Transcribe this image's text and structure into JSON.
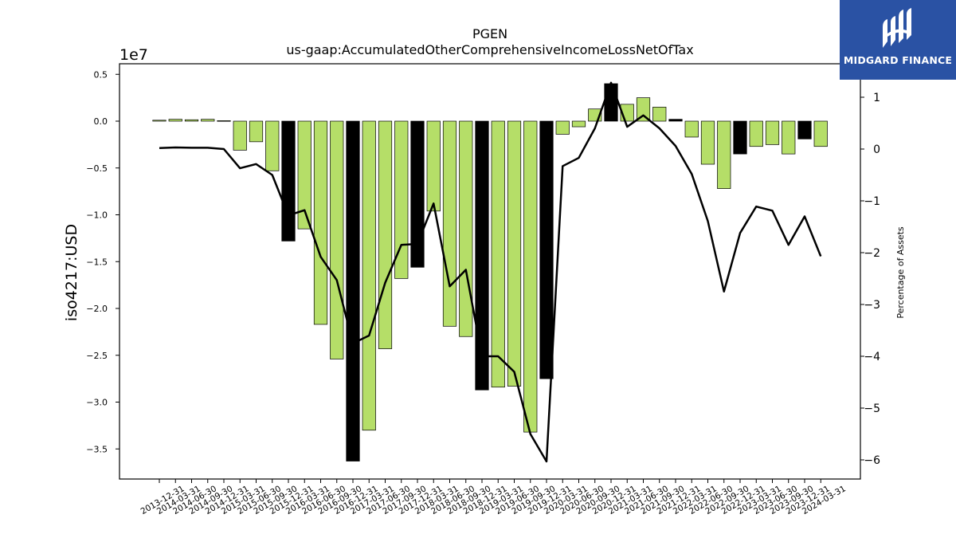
{
  "branding": {
    "logo_text": "MIDGARD FINANCE",
    "logo_bg": "#2a52a4"
  },
  "chart_data": {
    "type": "bar",
    "title": "PGEN",
    "subtitle": "us-gaap:AccumulatedOtherComprehensiveIncomeLossNetOfTax",
    "ylabel": "iso4217:USD",
    "y2label": "Percentage of Assets",
    "y_offset_label": "1e7",
    "ylim": [
      -3.82,
      0.6
    ],
    "y2lim": [
      -6.45,
      1.5
    ],
    "yticks": [
      0.5,
      0.0,
      -0.5,
      -1.0,
      -1.5,
      -2.0,
      -2.5,
      -3.0,
      -3.5
    ],
    "ytick_labels": [
      "0.5",
      "0.0",
      "−0.5",
      "−1.0",
      "−1.5",
      "−2.0",
      "−2.5",
      "−3.0",
      "−3.5"
    ],
    "y2ticks": [
      1,
      0,
      -1,
      -2,
      -3,
      -4,
      -5,
      -6
    ],
    "y2tick_labels": [
      "1",
      "0",
      "−1",
      "−2",
      "−3",
      "−4",
      "−5",
      "−6"
    ],
    "bar_color_default": "#b5de68",
    "bar_color_highlight": "#000000",
    "line_color": "#000000",
    "categories": [
      "2013-12-31",
      "2014-03-31",
      "2014-06-30",
      "2014-09-30",
      "2014-12-31",
      "2015-03-31",
      "2015-06-30",
      "2015-09-30",
      "2015-12-31",
      "2016-03-31",
      "2016-06-30",
      "2016-09-30",
      "2016-12-31",
      "2017-03-31",
      "2017-06-30",
      "2017-09-30",
      "2017-12-31",
      "2018-03-31",
      "2018-06-30",
      "2018-09-30",
      "2018-12-31",
      "2019-03-31",
      "2019-06-30",
      "2019-09-30",
      "2019-12-31",
      "2020-03-31",
      "2020-06-30",
      "2020-09-30",
      "2020-12-31",
      "2021-03-31",
      "2021-06-30",
      "2021-09-30",
      "2021-12-31",
      "2022-03-31",
      "2022-06-30",
      "2022-09-30",
      "2022-12-31",
      "2023-03-31",
      "2023-06-30",
      "2023-09-30",
      "2023-12-31",
      "2024-03-31"
    ],
    "series": [
      {
        "axis": "left",
        "values": [
          0.01,
          0.02,
          0.015,
          0.02,
          0.005,
          -0.31,
          -0.22,
          -0.53,
          -1.28,
          -1.15,
          -2.17,
          -2.54,
          -3.63,
          -3.3,
          -2.43,
          -1.68,
          -1.56,
          -0.96,
          -2.19,
          -2.3,
          -2.87,
          -2.84,
          -2.83,
          -3.32,
          -2.75,
          -0.14,
          -0.06,
          0.13,
          0.4,
          0.18,
          0.25,
          0.15,
          0.02,
          -0.17,
          -0.46,
          -0.72,
          -0.35,
          -0.27,
          -0.25,
          -0.35,
          -0.19,
          -0.27
        ],
        "highlight": [
          false,
          false,
          false,
          false,
          false,
          false,
          false,
          false,
          true,
          false,
          false,
          false,
          true,
          false,
          false,
          false,
          true,
          false,
          false,
          false,
          true,
          false,
          false,
          false,
          true,
          false,
          false,
          false,
          true,
          false,
          false,
          false,
          true,
          false,
          false,
          false,
          true,
          false,
          false,
          false,
          true,
          false
        ]
      },
      {
        "axis": "right",
        "values": [
          0.02,
          0.03,
          0.025,
          0.025,
          0.0,
          -0.37,
          -0.29,
          -0.5,
          -1.28,
          -1.18,
          -2.08,
          -2.53,
          -3.75,
          -3.6,
          -2.58,
          -1.85,
          -1.83,
          -1.05,
          -2.65,
          -2.33,
          -4.0,
          -4.0,
          -4.3,
          -5.5,
          -6.03,
          -0.33,
          -0.17,
          0.4,
          1.28,
          0.43,
          0.65,
          0.4,
          0.06,
          -0.48,
          -1.39,
          -2.75,
          -1.62,
          -1.11,
          -1.19,
          -1.85,
          -1.3,
          -2.07
        ]
      }
    ]
  }
}
